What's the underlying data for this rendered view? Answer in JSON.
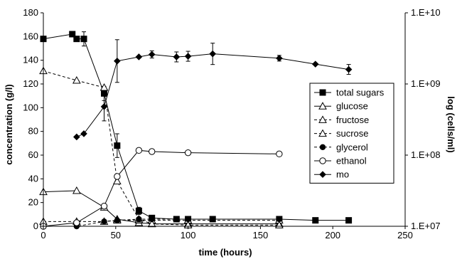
{
  "chart_data": {
    "type": "line",
    "xlabel": "time (hours)",
    "ylabel": "concentration (g/l)",
    "y2label": "log (cells/ml)",
    "xlim": [
      0,
      250
    ],
    "ylim": [
      0,
      180
    ],
    "y2lim": [
      10000000,
      10000000000
    ],
    "y2scale": "log",
    "x_ticks": [
      "0",
      "50",
      "100",
      "150",
      "200",
      "250"
    ],
    "y_ticks": [
      "0",
      "20",
      "40",
      "60",
      "80",
      "100",
      "120",
      "140",
      "160",
      "180"
    ],
    "y2_ticks": [
      "1.E+07",
      "1.E+08",
      "1.E+09",
      "1.E+10"
    ],
    "grid": false,
    "legend_position": "right",
    "series": [
      {
        "name": "total sugars",
        "axis": "left",
        "marker": "filled-square",
        "line": "solid",
        "points": [
          [
            0,
            158
          ],
          [
            20,
            162
          ],
          [
            23,
            158
          ],
          [
            28,
            158
          ],
          [
            42,
            112
          ],
          [
            51,
            68
          ],
          [
            66,
            13
          ],
          [
            75,
            7
          ],
          [
            92,
            6
          ],
          [
            100,
            6
          ],
          [
            117,
            6
          ],
          [
            163,
            6
          ],
          [
            188,
            5
          ],
          [
            211,
            5
          ]
        ],
        "errors": [
          0,
          0,
          0,
          6,
          6,
          10,
          3,
          1,
          0,
          0,
          0,
          0,
          0,
          0
        ]
      },
      {
        "name": "glucose",
        "axis": "left",
        "marker": "open-triangle",
        "line": "solid",
        "points": [
          [
            0,
            29
          ],
          [
            23,
            30
          ],
          [
            42,
            16
          ],
          [
            51,
            6
          ],
          [
            66,
            3
          ],
          [
            75,
            2
          ],
          [
            100,
            2
          ],
          [
            163,
            2
          ]
        ],
        "errors": [
          0,
          0,
          0,
          0,
          0,
          0,
          0,
          0
        ]
      },
      {
        "name": "fructose",
        "axis": "left",
        "marker": "open-triangle",
        "line": "dashed",
        "points": [
          [
            0,
            4
          ],
          [
            23,
            4
          ],
          [
            42,
            4
          ],
          [
            51,
            5
          ],
          [
            66,
            5
          ],
          [
            75,
            5
          ],
          [
            100,
            5
          ],
          [
            163,
            5
          ]
        ],
        "errors": [
          0,
          0,
          0,
          0,
          0,
          0,
          0,
          0
        ]
      },
      {
        "name": "sucrose",
        "axis": "left",
        "marker": "open-triangle",
        "line": "dashed",
        "points": [
          [
            0,
            131
          ],
          [
            23,
            123
          ],
          [
            42,
            117
          ],
          [
            51,
            38
          ],
          [
            66,
            6
          ],
          [
            75,
            2
          ],
          [
            100,
            1
          ],
          [
            163,
            1
          ]
        ],
        "errors": [
          0,
          0,
          0,
          0,
          0,
          0,
          0,
          0
        ]
      },
      {
        "name": "glycerol",
        "axis": "left",
        "marker": "filled-circle",
        "line": "dashed",
        "points": [
          [
            0,
            0
          ],
          [
            23,
            0
          ],
          [
            42,
            4
          ],
          [
            51,
            5
          ],
          [
            66,
            6
          ],
          [
            75,
            6
          ],
          [
            100,
            6
          ],
          [
            163,
            6
          ]
        ],
        "errors": [
          0,
          0,
          0,
          0,
          0,
          0,
          0,
          0
        ]
      },
      {
        "name": "ethanol",
        "axis": "left",
        "marker": "open-circle",
        "line": "solid",
        "points": [
          [
            0,
            0
          ],
          [
            23,
            3
          ],
          [
            42,
            17
          ],
          [
            51,
            42
          ],
          [
            66,
            64
          ],
          [
            75,
            63
          ],
          [
            100,
            62
          ],
          [
            163,
            61
          ]
        ],
        "errors": [
          0,
          0,
          0,
          0,
          0,
          0,
          0,
          0
        ]
      },
      {
        "name": "mo",
        "axis": "right",
        "marker": "filled-diamond",
        "line": "solid",
        "points": [
          [
            23,
            180000000
          ],
          [
            28,
            200000000
          ],
          [
            42,
            480000000
          ],
          [
            51,
            2100000000
          ],
          [
            66,
            2400000000
          ],
          [
            75,
            2600000000
          ],
          [
            92,
            2400000000
          ],
          [
            100,
            2450000000
          ],
          [
            117,
            2650000000
          ],
          [
            163,
            2300000000
          ],
          [
            188,
            1900000000
          ],
          [
            211,
            1600000000
          ]
        ],
        "errors_log": [
          0,
          0,
          0.2,
          0.3,
          0,
          0.05,
          0.07,
          0.07,
          0.15,
          0.04,
          0,
          0.07
        ]
      }
    ]
  }
}
